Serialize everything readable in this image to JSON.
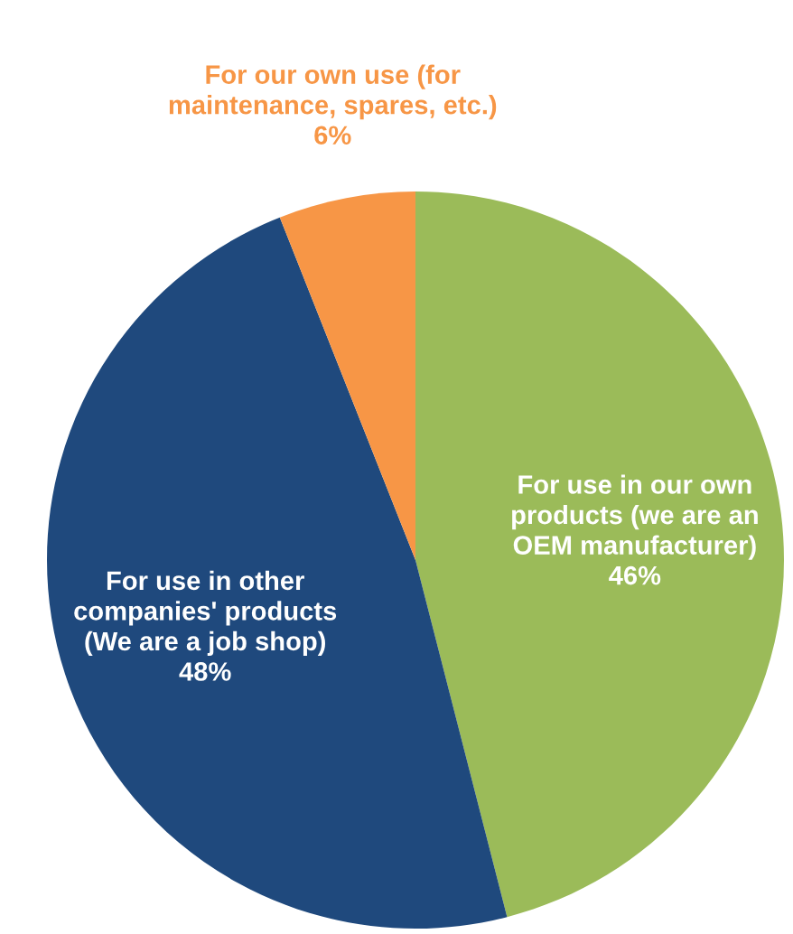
{
  "chart_data": {
    "type": "pie",
    "categories": [
      "For use in our own\nproducts (we are an\nOEM manufacturer)",
      "For use in other\ncompanies' products\n(We are a job shop)",
      "For our own use (for\nmaintenance, spares, etc.)"
    ],
    "values": [
      46,
      48,
      6
    ],
    "value_labels": [
      "46%",
      "48%",
      "6%"
    ],
    "colors": [
      "#9bbb59",
      "#1f497d",
      "#f79646"
    ]
  }
}
